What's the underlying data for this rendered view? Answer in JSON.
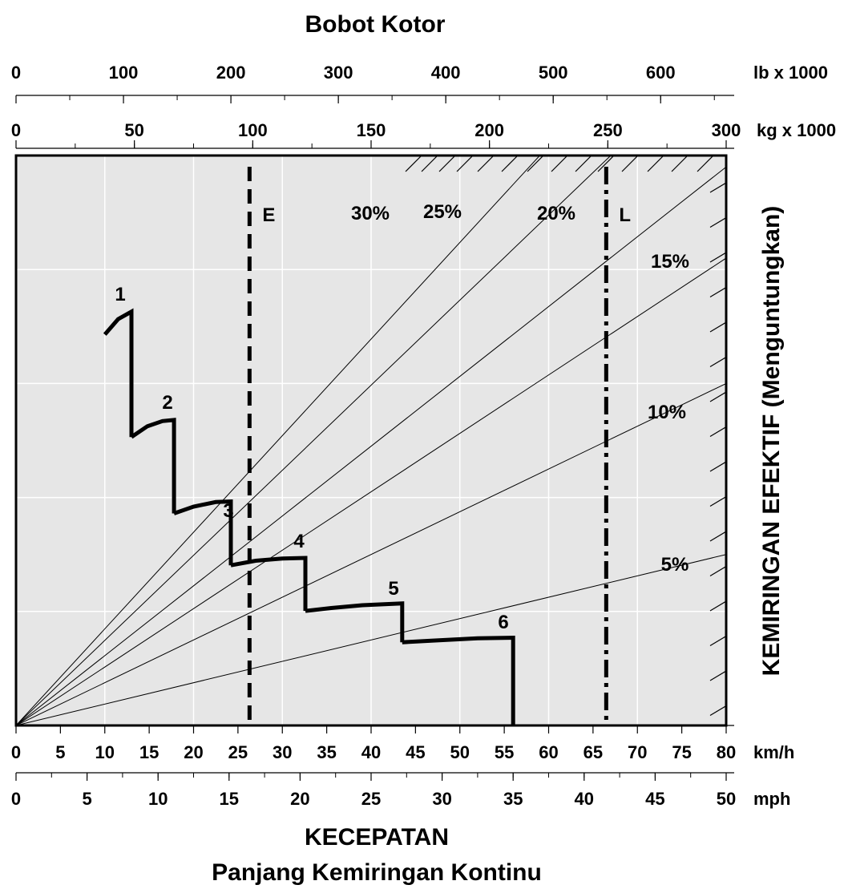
{
  "chart_data": {
    "type": "line",
    "title": "Bobot Kotor",
    "xlabel": "KECEPATAN",
    "xlabel_sub": "Panjang Kemiringan Kontinu",
    "ylabel": "KEMIRINGAN EFEKTIF (Menguntungkan)",
    "top_axis_lb": {
      "unit": "lb x 1000",
      "ticks": [
        "0",
        "100",
        "200",
        "300",
        "400",
        "500",
        "600"
      ],
      "range": [
        0,
        661
      ]
    },
    "top_axis_kg": {
      "unit": "kg x 1000",
      "ticks": [
        "0",
        "50",
        "100",
        "150",
        "200",
        "250",
        "300"
      ],
      "range": [
        0,
        300
      ]
    },
    "bottom_axis_kmh": {
      "unit": "km/h",
      "ticks": [
        "0",
        "5",
        "10",
        "15",
        "20",
        "25",
        "30",
        "35",
        "40",
        "45",
        "50",
        "55",
        "60",
        "65",
        "70",
        "75",
        "80"
      ],
      "range": [
        0,
        80
      ]
    },
    "bottom_axis_mph": {
      "unit": "mph",
      "ticks": [
        "0",
        "5",
        "10",
        "15",
        "20",
        "25",
        "30",
        "35",
        "40",
        "45",
        "50"
      ],
      "range": [
        0,
        50
      ]
    },
    "grade_lines": [
      {
        "label": "30%",
        "end": [
          59,
          100
        ]
      },
      {
        "label": "25%",
        "end": [
          67,
          100
        ]
      },
      {
        "label": "20%",
        "end": [
          80,
          98
        ]
      },
      {
        "label": "15%",
        "end": [
          80,
          82
        ]
      },
      {
        "label": "10%",
        "end": [
          80,
          60
        ]
      },
      {
        "label": "5%",
        "end": [
          80,
          30
        ]
      }
    ],
    "reference_lines": [
      {
        "label": "E",
        "weight_kg": 100,
        "style": "dashed"
      },
      {
        "label": "L",
        "weight_kg": 250,
        "style": "dash-dot"
      }
    ],
    "gears": [
      {
        "label": "1",
        "points": [
          [
            10,
            68.6
          ],
          [
            11.5,
            71.3
          ],
          [
            13,
            72.6
          ],
          [
            13,
            50.6
          ]
        ]
      },
      {
        "label": "2",
        "points": [
          [
            13,
            50.6
          ],
          [
            14.8,
            52.5
          ],
          [
            16.5,
            53.4
          ],
          [
            17.8,
            53.6
          ],
          [
            17.8,
            37.2
          ]
        ]
      },
      {
        "label": "3",
        "points": [
          [
            17.8,
            37.2
          ],
          [
            20,
            38.4
          ],
          [
            22.5,
            39.2
          ],
          [
            24.2,
            39.3
          ],
          [
            24.2,
            28.1
          ]
        ]
      },
      {
        "label": "4",
        "points": [
          [
            24.2,
            28.1
          ],
          [
            27,
            28.9
          ],
          [
            30,
            29.3
          ],
          [
            32.6,
            29.4
          ],
          [
            32.6,
            20.1
          ]
        ]
      },
      {
        "label": "5",
        "points": [
          [
            32.6,
            20.1
          ],
          [
            35.5,
            20.6
          ],
          [
            39,
            21.1
          ],
          [
            43.5,
            21.4
          ],
          [
            43.5,
            14.6
          ]
        ]
      },
      {
        "label": "6",
        "points": [
          [
            43.5,
            14.6
          ],
          [
            47,
            14.9
          ],
          [
            52,
            15.3
          ],
          [
            56,
            15.4
          ],
          [
            56,
            0
          ]
        ]
      }
    ]
  }
}
